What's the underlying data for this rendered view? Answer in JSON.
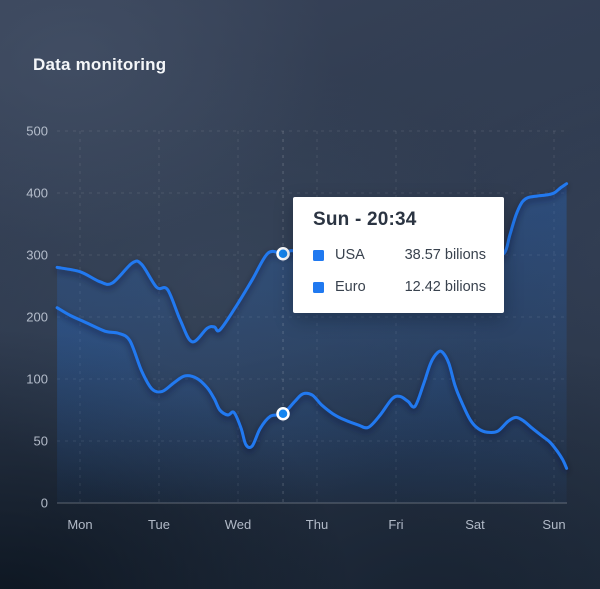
{
  "page": {
    "title": "Data monitoring"
  },
  "colors": {
    "accent_blue": "#2079f0",
    "marker_fill": "#1586f0",
    "area_blue": "#2079f0",
    "grid_line": "rgba(255,255,255,0.10)",
    "highlight_line": "rgba(255,255,255,0.20)",
    "baseline": "rgba(255,255,255,0.30)",
    "axis_label": "#c6cedb",
    "tooltip_bg": "#ffffff",
    "tooltip_title_color": "#2b3442",
    "tooltip_text_color": "#39424e"
  },
  "tooltip": {
    "title": "Sun - 20:34",
    "rows": [
      {
        "label": "USA",
        "value": "38.57 bilions"
      },
      {
        "label": "Euro",
        "value": "12.42 bilions"
      }
    ]
  },
  "chart_data": {
    "type": "area",
    "title": "Data monitoring",
    "x_categories": [
      "Mon",
      "Tue",
      "Wed",
      "Thu",
      "Fri",
      "Sat",
      "Sun"
    ],
    "y_ticks": [
      0,
      50,
      100,
      200,
      300,
      400,
      500
    ],
    "grid": true,
    "legend_position": "tooltip",
    "highlight_day": 2.57,
    "series": [
      {
        "name": "USA",
        "marker": {
          "day": 2.57,
          "value": 302
        },
        "points": [
          [
            -0.29,
            280
          ],
          [
            0,
            273
          ],
          [
            0.25,
            257
          ],
          [
            0.41,
            255
          ],
          [
            0.66,
            287
          ],
          [
            0.78,
            285
          ],
          [
            0.97,
            248
          ],
          [
            1.11,
            244
          ],
          [
            1.27,
            195
          ],
          [
            1.42,
            160
          ],
          [
            1.61,
            182
          ],
          [
            1.7,
            184
          ],
          [
            1.77,
            179
          ],
          [
            1.97,
            216
          ],
          [
            2.18,
            260
          ],
          [
            2.38,
            303
          ],
          [
            2.57,
            302
          ],
          [
            2.72,
            306
          ],
          [
            3.0,
            280
          ],
          [
            3.4,
            255
          ],
          [
            3.8,
            260
          ],
          [
            4.3,
            275
          ],
          [
            4.8,
            290
          ],
          [
            5.2,
            298
          ],
          [
            5.37,
            303
          ],
          [
            5.44,
            332
          ],
          [
            5.52,
            365
          ],
          [
            5.59,
            384
          ],
          [
            5.66,
            392
          ],
          [
            5.78,
            395
          ],
          [
            5.91,
            397
          ],
          [
            6.0,
            400
          ],
          [
            6.08,
            408
          ],
          [
            6.16,
            415
          ]
        ]
      },
      {
        "name": "Euro",
        "marker": {
          "day": 2.57,
          "value": 72
        },
        "points": [
          [
            -0.29,
            215
          ],
          [
            -0.13,
            203
          ],
          [
            0.06,
            192
          ],
          [
            0.32,
            177
          ],
          [
            0.48,
            174
          ],
          [
            0.63,
            162
          ],
          [
            0.78,
            113
          ],
          [
            0.91,
            92
          ],
          [
            1.04,
            90
          ],
          [
            1.19,
            97
          ],
          [
            1.33,
            105
          ],
          [
            1.48,
            101
          ],
          [
            1.61,
            93
          ],
          [
            1.7,
            84
          ],
          [
            1.77,
            75
          ],
          [
            1.87,
            71
          ],
          [
            1.95,
            73
          ],
          [
            2.04,
            60
          ],
          [
            2.1,
            47
          ],
          [
            2.18,
            46
          ],
          [
            2.28,
            60
          ],
          [
            2.41,
            70
          ],
          [
            2.57,
            72
          ],
          [
            2.72,
            82
          ],
          [
            2.82,
            88
          ],
          [
            2.94,
            87
          ],
          [
            3.06,
            79
          ],
          [
            3.2,
            72
          ],
          [
            3.35,
            67
          ],
          [
            3.52,
            63
          ],
          [
            3.65,
            61
          ],
          [
            3.8,
            71
          ],
          [
            3.95,
            84
          ],
          [
            4.05,
            86
          ],
          [
            4.15,
            82
          ],
          [
            4.24,
            78
          ],
          [
            4.35,
            96
          ],
          [
            4.44,
            126
          ],
          [
            4.53,
            143
          ],
          [
            4.59,
            143
          ],
          [
            4.67,
            125
          ],
          [
            4.75,
            94
          ],
          [
            4.84,
            80
          ],
          [
            4.94,
            67
          ],
          [
            5.04,
            60
          ],
          [
            5.16,
            57
          ],
          [
            5.29,
            58
          ],
          [
            5.42,
            66
          ],
          [
            5.52,
            69
          ],
          [
            5.62,
            66
          ],
          [
            5.73,
            60
          ],
          [
            5.85,
            54
          ],
          [
            5.95,
            49
          ],
          [
            6.05,
            41
          ],
          [
            6.11,
            35
          ],
          [
            6.16,
            28
          ]
        ]
      }
    ]
  }
}
